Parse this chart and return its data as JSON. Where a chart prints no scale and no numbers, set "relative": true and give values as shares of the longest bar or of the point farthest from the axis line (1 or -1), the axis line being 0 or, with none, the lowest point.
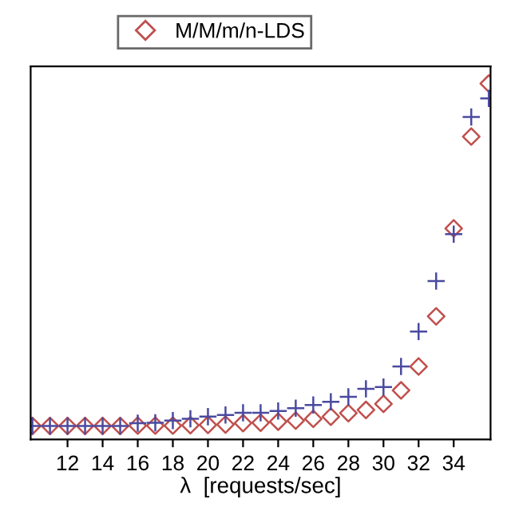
{
  "chart_data": {
    "type": "scatter",
    "xlabel": "λ  [requests/sec]",
    "relative": true,
    "xlim": [
      9.9,
      36.1
    ],
    "xticks": [
      12,
      14,
      16,
      18,
      20,
      22,
      24,
      26,
      28,
      30,
      32,
      34
    ],
    "x": [
      10,
      11,
      12,
      13,
      14,
      15,
      16,
      17,
      18,
      19,
      20,
      21,
      22,
      23,
      24,
      25,
      26,
      27,
      28,
      29,
      30,
      31,
      32,
      33,
      34,
      35,
      36
    ],
    "series": [
      {
        "name": "M/M/m/n-LDS",
        "color": "#c0504d",
        "marker": "diamond",
        "values": [
          0.038,
          0.038,
          0.038,
          0.038,
          0.038,
          0.038,
          0.039,
          0.039,
          0.039,
          0.04,
          0.041,
          0.042,
          0.046,
          0.047,
          0.05,
          0.053,
          0.058,
          0.064,
          0.074,
          0.083,
          0.1,
          0.138,
          0.205,
          0.346,
          0.593,
          0.851,
          1
        ]
      },
      {
        "color": "#4a4aa0",
        "marker": "cross",
        "values": [
          0.038,
          0.038,
          0.038,
          0.038,
          0.038,
          0.038,
          0.046,
          0.047,
          0.053,
          0.058,
          0.064,
          0.069,
          0.075,
          0.075,
          0.08,
          0.088,
          0.097,
          0.106,
          0.12,
          0.142,
          0.147,
          0.205,
          0.303,
          0.445,
          0.577,
          0.906,
          0.958
        ]
      }
    ],
    "legend": "top",
    "grid": false
  }
}
